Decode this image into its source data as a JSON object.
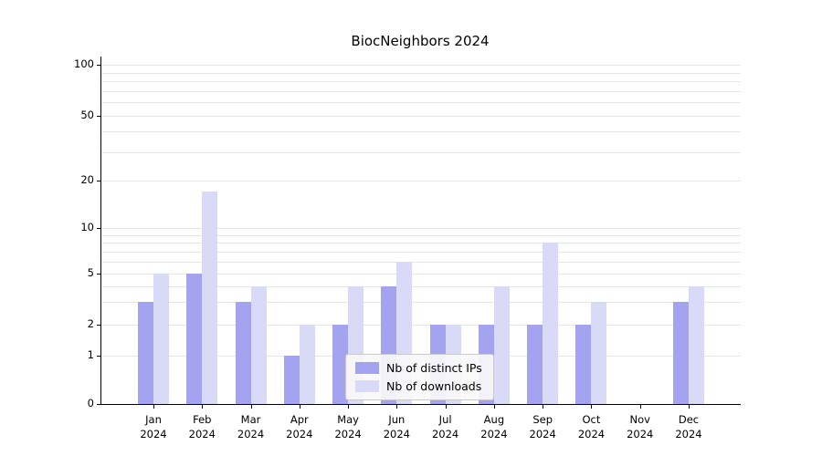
{
  "chart_data": {
    "type": "bar",
    "title": "BiocNeighbors 2024",
    "xlabel": "",
    "ylabel": "",
    "scale": "log-like",
    "ylim": [
      0,
      100
    ],
    "grid": true,
    "legend_position": "bottom-center",
    "y_ticks": [
      0,
      1,
      2,
      5,
      10,
      20,
      50,
      100
    ],
    "grid_values": [
      1,
      2,
      3,
      4,
      5,
      6,
      7,
      8,
      9,
      10,
      20,
      30,
      40,
      50,
      60,
      70,
      80,
      90,
      100
    ],
    "categories": [
      {
        "month": "Jan",
        "year": "2024"
      },
      {
        "month": "Feb",
        "year": "2024"
      },
      {
        "month": "Mar",
        "year": "2024"
      },
      {
        "month": "Apr",
        "year": "2024"
      },
      {
        "month": "May",
        "year": "2024"
      },
      {
        "month": "Jun",
        "year": "2024"
      },
      {
        "month": "Jul",
        "year": "2024"
      },
      {
        "month": "Aug",
        "year": "2024"
      },
      {
        "month": "Sep",
        "year": "2024"
      },
      {
        "month": "Oct",
        "year": "2024"
      },
      {
        "month": "Nov",
        "year": "2024"
      },
      {
        "month": "Dec",
        "year": "2024"
      }
    ],
    "series": [
      {
        "name": "Nb of distinct IPs",
        "color": "#a3a3ef",
        "values": [
          3,
          5,
          3,
          1,
          2,
          4,
          2,
          2,
          2,
          2,
          0,
          3
        ]
      },
      {
        "name": "Nb of downloads",
        "color": "#d9d9f8",
        "values": [
          5,
          17,
          4,
          2,
          4,
          6,
          2,
          4,
          8,
          3,
          0,
          4
        ]
      }
    ]
  }
}
